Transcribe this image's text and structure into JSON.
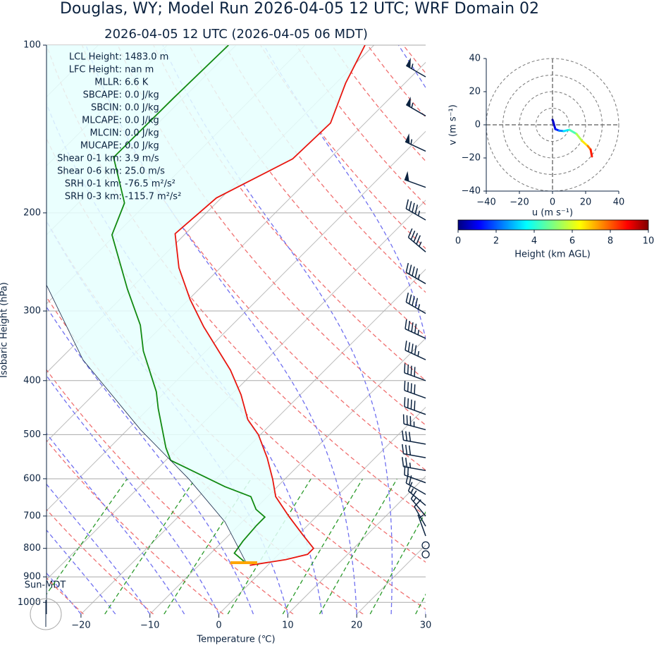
{
  "chart_data": [
    {
      "type": "skewt",
      "title": "Douglas, WY; Model Run 2026-04-05 12 UTC; WRF Domain 02",
      "subtitle": "2026-04-05 12 UTC  (2026-04-05 06 MDT)",
      "xlabel": "Temperature (℃)",
      "ylabel": "Isobaric Height (hPa)",
      "xlim": [
        -25,
        30
      ],
      "ylim": [
        1050,
        100
      ],
      "log_y": true,
      "grid": true,
      "xticks": [
        {
          "value": -20,
          "label": "−20"
        },
        {
          "value": -10,
          "label": "−10"
        },
        0,
        10,
        20,
        30
      ],
      "yticks": [
        100,
        200,
        300,
        400,
        500,
        600,
        700,
        800,
        900,
        1000
      ],
      "series": [
        {
          "color": "#e8160f",
          "pressure": [
            858,
            838,
            820,
            800,
            758,
            700,
            646,
            602,
            551,
            500,
            470,
            424,
            383,
            320,
            286,
            251,
            218,
            188,
            160,
            138,
            117,
            100
          ],
          "values": [
            -2.6,
            1.8,
            4.2,
            4.2,
            0.8,
            -4.1,
            -8.8,
            -11.7,
            -15.6,
            -20.3,
            -24,
            -28.6,
            -33.7,
            -43.9,
            -49.8,
            -56,
            -61.5,
            -60.7,
            -55.3,
            -55,
            -58.6,
            -61.3
          ]
        },
        {
          "color": "#128a12",
          "pressure": [
            852,
            816,
            776,
            728,
            703,
            681,
            646,
            620,
            594,
            556,
            528,
            449,
            419,
            354,
            318,
            274,
            219,
            192,
            159,
            124,
            100
          ],
          "values": [
            -3.3,
            -6.6,
            -7.1,
            -7.4,
            -7.4,
            -9.8,
            -12.4,
            -17.6,
            -22.2,
            -29.3,
            -31.8,
            -38.6,
            -41.3,
            -49.1,
            -53.3,
            -60.4,
            -70.5,
            -73.3,
            -81.5,
            -81.4,
            -81.1
          ]
        },
        {
          "color": "#1a2a4a",
          "pressure": [
            852,
            717,
            602,
            490,
            367,
            266
          ],
          "values": [
            -3.3,
            -12.5,
            -23.8,
            -38.1,
            -56.6,
            -73.4
          ]
        }
      ],
      "wind": {
        "pressure": [
          114,
          134,
          155,
          180,
          206,
          235,
          268,
          303,
          336,
          367,
          400,
          430,
          460,
          490,
          520,
          550,
          580,
          610,
          640,
          670,
          700,
          730,
          760,
          790,
          820
        ],
        "speed": [
          55,
          55,
          55,
          50,
          45,
          45,
          45,
          45,
          45,
          45,
          40,
          40,
          40,
          35,
          30,
          30,
          25,
          20,
          20,
          15,
          15,
          10,
          5,
          0,
          0
        ],
        "direction": [
          300,
          300,
          295,
          290,
          300,
          310,
          300,
          300,
          295,
          295,
          290,
          290,
          290,
          285,
          280,
          280,
          280,
          290,
          300,
          310,
          320,
          330,
          340,
          0,
          0
        ]
      },
      "annotations": [
        {
          "label": "LCL Height:",
          "value": "1483.0 m"
        },
        {
          "label": "LFC Height:",
          "value": "nan m"
        },
        {
          "label": "MLLR:",
          "value": "6.6 K"
        },
        {
          "label": "SBCAPE:",
          "value": "0.0 J/kg"
        },
        {
          "label": "SBCIN:",
          "value": "0.0 J/kg"
        },
        {
          "label": "MLCAPE:",
          "value": "0.0 J/kg"
        },
        {
          "label": "MLCIN:",
          "value": "0.0 J/kg"
        },
        {
          "label": "MUCAPE:",
          "value": "0.0 J/kg"
        },
        {
          "label": "Shear 0-1 km:",
          "value": "3.9 m/s"
        },
        {
          "label": "Shear 0-6 km:",
          "value": "25.0 m/s"
        },
        {
          "label": "SRH 0-1 km:",
          "value": "-76.5 m²/s²"
        },
        {
          "label": "SRH 0-3 km:",
          "value": "-115.7 m²/s²"
        }
      ],
      "time_label": "Sun-MDT"
    },
    {
      "type": "hodograph",
      "xlabel": "u (m s⁻¹)",
      "ylabel": "v (m s⁻¹)",
      "xlim": [
        -40,
        40
      ],
      "ylim": [
        -40,
        40
      ],
      "xticks": [
        {
          "value": -40,
          "label": "−40"
        },
        {
          "value": -20,
          "label": "−20"
        },
        0,
        20,
        40
      ],
      "yticks": [
        {
          "value": -40,
          "label": "−40"
        },
        {
          "value": -20,
          "label": "−20"
        },
        0,
        20,
        40
      ],
      "u": [
        0,
        0.4,
        1.7,
        4,
        6.8,
        10.2,
        14.5,
        17.9,
        21.3,
        23,
        23.8
      ],
      "v": [
        3,
        2,
        -2.6,
        -3.5,
        -3.8,
        -3,
        -5.5,
        -9.8,
        -12.8,
        -14.9,
        -19.1
      ],
      "height": [
        0,
        0.3,
        0.8,
        1.5,
        2.5,
        3.5,
        4.5,
        5.5,
        6.5,
        7.5,
        8.5
      ],
      "colorbar": {
        "label": "Height (km AGL)",
        "lim": [
          0,
          10
        ],
        "ticks": [
          0,
          2,
          4,
          6,
          8,
          10
        ]
      }
    }
  ]
}
